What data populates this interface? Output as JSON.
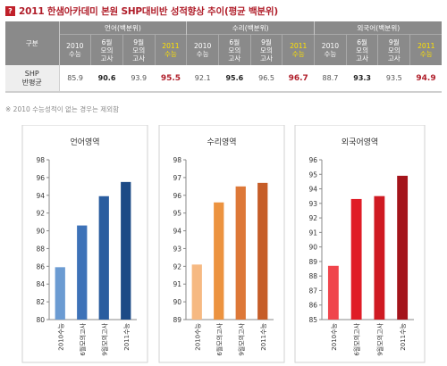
{
  "header": {
    "marker": "?",
    "title": "2011 한샘아카데미 본원 SHP대비반 성적향상 추이(평균 백분위)"
  },
  "table": {
    "corner_label": "구분",
    "groups": [
      {
        "name": "언어(백분위)",
        "cols": [
          "2010\n수능",
          "6월\n모의\n고사",
          "9월\n모의\n고사",
          "2011\n수능"
        ],
        "values": [
          "85.9",
          "90.6",
          "93.9",
          "95.5"
        ]
      },
      {
        "name": "수리(백분위)",
        "cols": [
          "2010\n수능",
          "6월\n모의\n고사",
          "9월\n모의\n고사",
          "2011\n수능"
        ],
        "values": [
          "92.1",
          "95.6",
          "96.5",
          "96.7"
        ]
      },
      {
        "name": "외국어(백분위)",
        "cols": [
          "2010\n수능",
          "6월\n모의\n고사",
          "9월\n모의\n고사",
          "2011\n수능"
        ],
        "values": [
          "88.7",
          "93.3",
          "93.5",
          "94.9"
        ]
      }
    ],
    "row_label": "SHP\n반평균"
  },
  "note": "※ 2010 수능성적이 없는 경우는 제외함",
  "chart_data": [
    {
      "type": "bar",
      "title": "언어영역",
      "categories": [
        "2010수능",
        "6월모의고사",
        "9월모의고사",
        "2011수능"
      ],
      "values": [
        85.9,
        90.6,
        93.9,
        95.5
      ],
      "ylim": [
        80,
        98
      ],
      "yticks": [
        80,
        82,
        84,
        86,
        88,
        90,
        92,
        94,
        96,
        98
      ],
      "colors": [
        "#6b9bd2",
        "#3d72b8",
        "#2a5d9f",
        "#1c4a86"
      ],
      "grid": false
    },
    {
      "type": "bar",
      "title": "수리영역",
      "categories": [
        "2010수능",
        "6월모의고사",
        "9월모의고사",
        "2011수능"
      ],
      "values": [
        92.1,
        95.6,
        96.5,
        96.7
      ],
      "ylim": [
        89,
        98
      ],
      "yticks": [
        89,
        90,
        91,
        92,
        93,
        94,
        95,
        96,
        97,
        98
      ],
      "colors": [
        "#f6b982",
        "#ec9340",
        "#dd7838",
        "#c65d27"
      ],
      "grid": false
    },
    {
      "type": "bar",
      "title": "외국어영역",
      "categories": [
        "2010수능",
        "6월모의고사",
        "9월모의고사",
        "2011수능"
      ],
      "values": [
        88.7,
        93.3,
        93.5,
        94.9
      ],
      "ylim": [
        85,
        96
      ],
      "yticks": [
        85,
        86,
        87,
        88,
        89,
        90,
        91,
        92,
        93,
        94,
        95,
        96
      ],
      "colors": [
        "#f0454c",
        "#e01c26",
        "#cf1a22",
        "#a4141b"
      ],
      "grid": false
    }
  ]
}
